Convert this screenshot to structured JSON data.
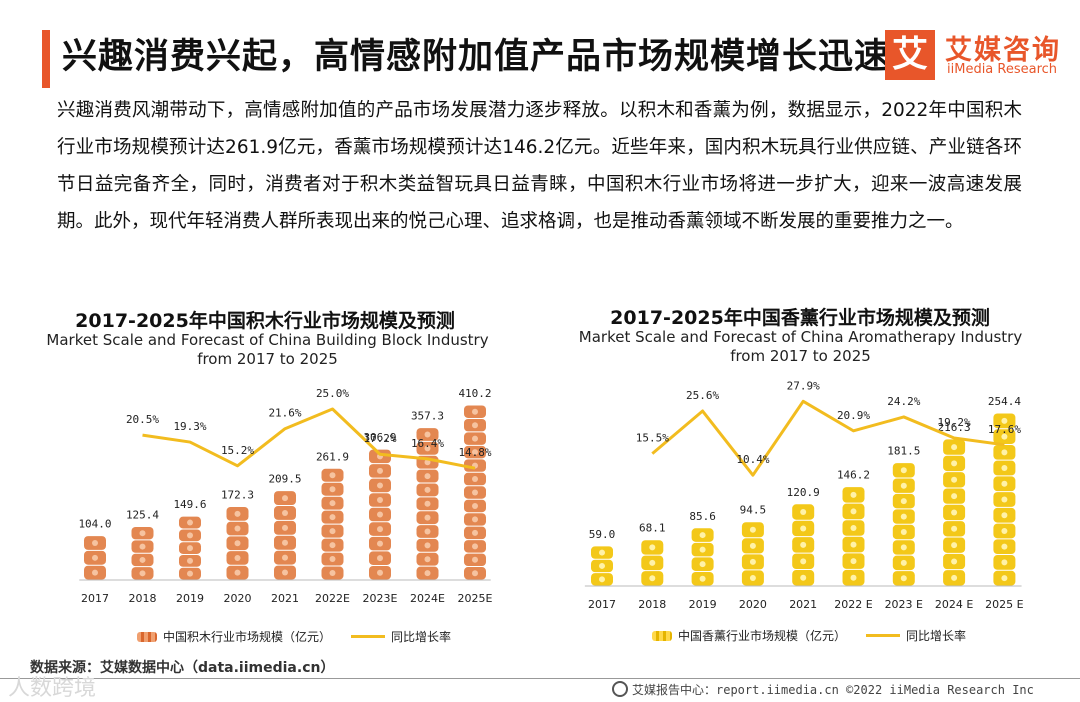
{
  "header": {
    "title": "兴趣消费兴起，高情感附加值产品市场规模增长迅速",
    "logo_mark": "艾",
    "logo_cn": "艾媒咨询",
    "logo_en": "iiMedia Research"
  },
  "intro": "兴趣消费风潮带动下，高情感附加值的产品市场发展潜力逐步释放。以积木和香薰为例，数据显示，2022年中国积木行业市场规模预计达261.9亿元，香薰市场规模预计达146.2亿元。近些年来，国内积木玩具行业供应链、产业链各环节日益完备齐全，同时，消费者对于积木类益智玩具日益青睐，中国积木行业市场将进一步扩大，迎来一波高速发展期。此外，现代年轻消费人群所表现出来的悦己心理、追求格调，也是推动香薰领域不断发展的重要推力之一。",
  "chart_data": [
    {
      "type": "bar",
      "title": "2017-2025年中国积木行业市场规模及预测",
      "subtitle": "Market Scale and Forecast of China Building Block Industry from 2017 to 2025",
      "categories": [
        "2017",
        "2018",
        "2019",
        "2020",
        "2021",
        "2022E",
        "2023E",
        "2024E",
        "2025E"
      ],
      "series": [
        {
          "name": "中国积木行业市场规模（亿元）",
          "type": "bar",
          "values": [
            104.0,
            125.4,
            149.6,
            172.3,
            209.5,
            261.9,
            306.9,
            357.3,
            410.2
          ],
          "labels": [
            "104.0",
            "125.4",
            "149.6",
            "172.3",
            "209.5",
            "261.9",
            "306.9",
            "357.3",
            "410.2"
          ]
        },
        {
          "name": "同比增长率",
          "type": "line",
          "values": [
            null,
            20.5,
            19.3,
            15.2,
            21.6,
            25.0,
            17.2,
            16.4,
            14.8
          ],
          "labels": [
            "",
            "20.5%",
            "19.3%",
            "15.2%",
            "21.6%",
            "25.0%",
            "17.2%",
            "16.4%",
            "14.8%"
          ]
        }
      ],
      "bar_color": "#e07a3e",
      "line_color": "#f2bc1f"
    },
    {
      "type": "bar",
      "title": "2017-2025年中国香薰行业市场规模及预测",
      "subtitle": "Market Scale and Forecast of China Aromatherapy Industry from 2017 to 2025",
      "categories": [
        "2017",
        "2018",
        "2019",
        "2020",
        "2021",
        "2022 E",
        "2023 E",
        "2024 E",
        "2025 E"
      ],
      "series": [
        {
          "name": "中国香薰行业市场规模（亿元）",
          "type": "bar",
          "values": [
            59.0,
            68.1,
            85.6,
            94.5,
            120.9,
            146.2,
            181.5,
            216.3,
            254.4
          ],
          "labels": [
            "59.0",
            "68.1",
            "85.6",
            "94.5",
            "120.9",
            "146.2",
            "181.5",
            "216.3",
            "254.4"
          ]
        },
        {
          "name": "同比增长率",
          "type": "line",
          "values": [
            null,
            15.5,
            25.6,
            10.4,
            27.9,
            20.9,
            24.2,
            19.2,
            17.6
          ],
          "labels": [
            "",
            "15.5%",
            "25.6%",
            "10.4%",
            "27.9%",
            "20.9%",
            "24.2%",
            "19.2%",
            "17.6%"
          ]
        }
      ],
      "bar_color": "#f2c200",
      "line_color": "#f2bc1f"
    }
  ],
  "source": "数据来源：艾媒数据中心（data.iimedia.cn）",
  "footer": "艾媒报告中心：report.iimedia.cn  ©2022  iiMedia Research  Inc",
  "watermark": "人数跨境",
  "colors": {
    "accent": "#e8562a",
    "line": "#f2bc1f"
  }
}
